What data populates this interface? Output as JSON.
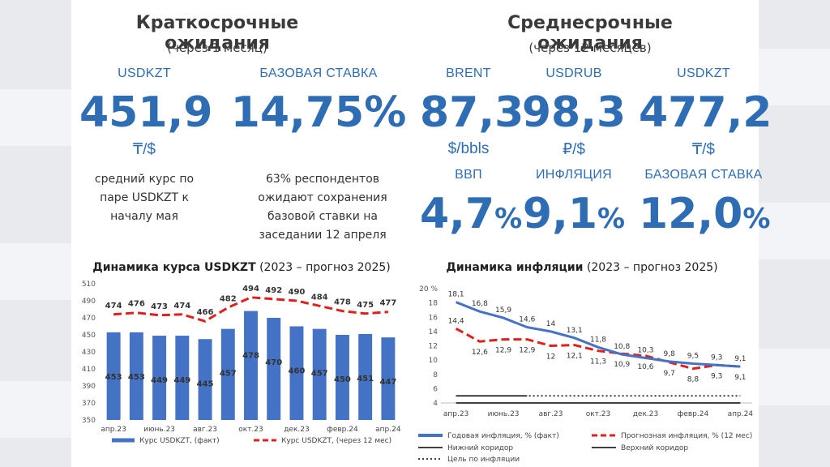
{
  "left": {
    "title": "Краткосрочные ожидания",
    "subtitle": "(через 1 месяц)",
    "kpis": [
      {
        "label": "USDKZT",
        "value": "451,9",
        "unit": "₸/$",
        "note": "средний курс по паре USDKZT к началу мая"
      },
      {
        "label": "БАЗОВАЯ СТАВКА",
        "value": "14,75",
        "suffix": "%",
        "note": "63% респондентов ожидают сохранения базовой ставки на заседании 12 апреля"
      }
    ]
  },
  "right": {
    "title": "Среднесрочные ожидания",
    "subtitle": "(через 12 месяцев)",
    "kpis": [
      {
        "label": "BRENT",
        "value": "87,3",
        "unit": "$/bbls"
      },
      {
        "label": "USDRUB",
        "value": "98,3",
        "unit": "₽/$"
      },
      {
        "label": "USDKZT",
        "value": "477,2",
        "unit": "₸/$"
      },
      {
        "label": "ВВП",
        "value": "4,7",
        "suffix": "%"
      },
      {
        "label": "ИНФЛЯЦИЯ",
        "value": "9,1",
        "suffix": "%"
      },
      {
        "label": "БАЗОВАЯ СТАВКА",
        "value": "12,0",
        "suffix": "%"
      }
    ]
  },
  "colors": {
    "blue": "#4472c4",
    "red": "#e0201b",
    "accent": "#2e6db4",
    "black": "#000000"
  },
  "chart_data": [
    {
      "type": "bar",
      "title": "Динамика курса USDKZT",
      "title_suffix": "(2023 – прогноз 2025)",
      "ylim": [
        350,
        510
      ],
      "yticks": [
        350,
        370,
        390,
        410,
        430,
        450,
        470,
        490,
        510
      ],
      "tick_labels": [
        "апр.23",
        "июнь.23",
        "авг.23",
        "окт.23",
        "дек.23",
        "февр.24",
        "апр.24"
      ],
      "tick_index": [
        0,
        2,
        4,
        6,
        8,
        10,
        12
      ],
      "series": [
        {
          "name": "Курс USDKZT, (факт)",
          "kind": "bar",
          "values": [
            453,
            453,
            449,
            449,
            445,
            457,
            478,
            470,
            460,
            457,
            450,
            451,
            447
          ]
        },
        {
          "name": "Курс USDKZT, (через 12 мес)",
          "kind": "line",
          "values": [
            474,
            476,
            473,
            474,
            466,
            482,
            494,
            492,
            490,
            484,
            478,
            475,
            477
          ]
        }
      ],
      "legend_position": "bottom"
    },
    {
      "type": "line",
      "title": "Динамика инфляции",
      "title_suffix": "(2023 – прогноз 2025)",
      "ylim": [
        4,
        20
      ],
      "yticks": [
        4,
        6,
        8,
        10,
        12,
        14,
        16,
        18,
        20
      ],
      "y_top_label": "20 %",
      "tick_labels": [
        "апр.23",
        "июнь.23",
        "авг.23",
        "окт.23",
        "дек.23",
        "февр.24",
        "апр.24"
      ],
      "tick_index": [
        0,
        2,
        4,
        6,
        8,
        10,
        12
      ],
      "series": [
        {
          "name": "Годовая инфляция, % (факт)",
          "kind": "line",
          "values": [
            18.1,
            16.8,
            15.9,
            14.6,
            14.0,
            13.1,
            11.8,
            10.8,
            10.3,
            9.8,
            9.5,
            9.3,
            9.1
          ]
        },
        {
          "name": "Прогнозная инфляция, % (12 мес)",
          "kind": "dashed",
          "values": [
            14.4,
            12.6,
            12.9,
            12.9,
            12.0,
            12.1,
            11.3,
            10.9,
            10.6,
            9.7,
            8.8,
            9.3,
            9.1
          ]
        },
        {
          "name": "Нижний коридор",
          "kind": "band-low",
          "values": [
            4,
            4,
            4,
            4,
            4,
            4,
            4,
            4,
            4,
            4,
            4,
            4,
            4
          ]
        },
        {
          "name": "Верхний коридор",
          "kind": "band-high",
          "values": [
            5,
            5,
            5,
            5,
            5,
            5,
            5,
            5,
            5,
            5,
            5,
            5,
            5
          ]
        },
        {
          "name": "Цель по инфляции",
          "kind": "dotted",
          "values": [
            5,
            5,
            5,
            5,
            5,
            5,
            5,
            5,
            5,
            5,
            5,
            5,
            5
          ]
        }
      ],
      "legend_position": "bottom"
    }
  ]
}
